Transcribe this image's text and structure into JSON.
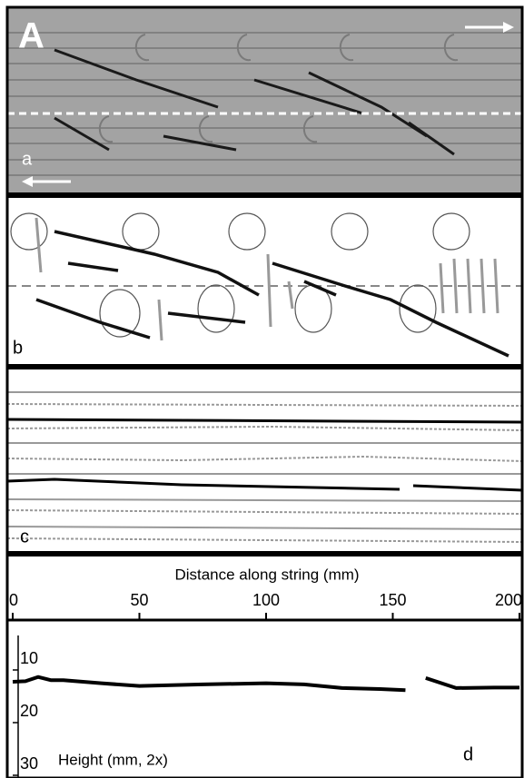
{
  "figure_label": "A",
  "panel_labels": [
    "a",
    "b",
    "c",
    "d"
  ],
  "chart_data": {
    "type": "line",
    "xlabel": "Distance along string (mm)",
    "ylabel": "Height (mm, 2x)",
    "x": [
      0,
      5,
      10,
      15,
      20,
      35,
      50,
      75,
      100,
      115,
      130,
      145,
      155,
      157,
      163,
      175,
      190,
      200
    ],
    "series": [
      {
        "color": "#000000",
        "values": [
          14.3,
          14.2,
          13.4,
          14.0,
          14.0,
          14.6,
          15.1,
          14.8,
          14.6,
          14.8,
          15.5,
          15.7,
          15.9,
          null,
          13.6,
          15.5,
          15.4,
          15.4
        ]
      }
    ],
    "xlim": [
      0,
      200
    ],
    "ylim": [
      10,
      30
    ],
    "xticks": [
      0,
      50,
      100,
      150,
      200
    ],
    "yticks": [
      10,
      20,
      30
    ],
    "y_inverted": true
  }
}
